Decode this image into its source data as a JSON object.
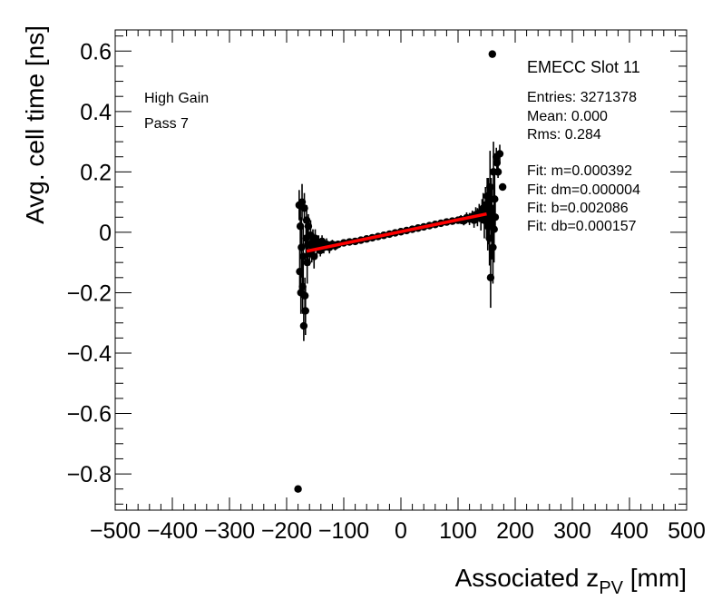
{
  "chart_data": {
    "type": "scatter",
    "title": "",
    "xlabel": "Associated z",
    "xlabel_sub": "PV",
    "xlabel_unit": " [mm]",
    "ylabel": "Avg. cell time [ns]",
    "xlim": [
      -500,
      500
    ],
    "ylim": [
      -0.92,
      0.67
    ],
    "x_ticks": [
      -500,
      -400,
      -300,
      -200,
      -100,
      0,
      100,
      200,
      300,
      400,
      500
    ],
    "x_tick_labels": [
      "−500",
      "−400",
      "−300",
      "−200",
      "−100",
      "0",
      "100",
      "200",
      "300",
      "400",
      "500"
    ],
    "y_ticks": [
      0.6,
      0.4,
      0.2,
      0,
      -0.2,
      -0.4,
      -0.6,
      -0.8
    ],
    "y_tick_labels": [
      "0.6",
      "0.4",
      "0.2",
      "0",
      "−0.2",
      "−0.4",
      "−0.6",
      "−0.8"
    ],
    "grid": false,
    "colors": {
      "markers": "#000000",
      "fit_line": "#ff0000"
    },
    "annotations_left": [
      "High Gain",
      "Pass 7"
    ],
    "stats": {
      "title": "EMECC Slot 11",
      "lines": [
        "Entries: 3271378",
        "Mean: 0.000",
        "Rms: 0.284"
      ],
      "fit_lines": [
        "Fit: m=0.000392",
        "Fit: dm=0.000004",
        "Fit: b=0.002086",
        "Fit: db=0.000157"
      ]
    },
    "fit": {
      "m": 0.000392,
      "b": 0.002086,
      "x_range": [
        -165,
        150
      ]
    },
    "series": [
      {
        "type": "scatter_with_errors",
        "points": [
          [
            -180,
            -0.85,
            0.0
          ],
          [
            -178,
            0.09,
            0.05
          ],
          [
            -177,
            -0.13,
            0.08
          ],
          [
            -176,
            0.02,
            0.06
          ],
          [
            -175,
            -0.2,
            0.07
          ],
          [
            -174,
            -0.05,
            0.1
          ],
          [
            -173,
            0.1,
            0.06
          ],
          [
            -172,
            -0.18,
            0.09
          ],
          [
            -171,
            -0.08,
            0.1
          ],
          [
            -170,
            -0.31,
            0.05
          ],
          [
            -169,
            0.08,
            0.05
          ],
          [
            -168,
            -0.21,
            0.06
          ],
          [
            -167,
            -0.26,
            0.08
          ],
          [
            -166,
            -0.02,
            0.06
          ],
          [
            -165,
            0.04,
            0.05
          ],
          [
            -164,
            -0.1,
            0.07
          ],
          [
            -163,
            -0.04,
            0.05
          ],
          [
            -162,
            0.02,
            0.04
          ],
          [
            -160,
            -0.07,
            0.04
          ],
          [
            -158,
            -0.01,
            0.05
          ],
          [
            -156,
            -0.06,
            0.04
          ],
          [
            -154,
            -0.03,
            0.04
          ],
          [
            -152,
            -0.08,
            0.04
          ],
          [
            -150,
            -0.02,
            0.03
          ],
          [
            -147,
            -0.05,
            0.03
          ],
          [
            -144,
            -0.04,
            0.03
          ],
          [
            -141,
            -0.06,
            0.02
          ],
          [
            -138,
            -0.03,
            0.02
          ],
          [
            -135,
            -0.05,
            0.02
          ],
          [
            -130,
            -0.04,
            0.02
          ],
          [
            -125,
            -0.05,
            0.02
          ],
          [
            -120,
            -0.04,
            0.015
          ],
          [
            -115,
            -0.045,
            0.015
          ],
          [
            -110,
            -0.04,
            0.012
          ],
          [
            -100,
            -0.035,
            0.01
          ],
          [
            -90,
            -0.032,
            0.01
          ],
          [
            -80,
            -0.03,
            0.01
          ],
          [
            -70,
            -0.026,
            0.008
          ],
          [
            -60,
            -0.022,
            0.008
          ],
          [
            -50,
            -0.018,
            0.008
          ],
          [
            -40,
            -0.014,
            0.008
          ],
          [
            -30,
            -0.01,
            0.008
          ],
          [
            -20,
            -0.006,
            0.008
          ],
          [
            -10,
            -0.002,
            0.008
          ],
          [
            0,
            0.002,
            0.008
          ],
          [
            10,
            0.006,
            0.008
          ],
          [
            20,
            0.01,
            0.008
          ],
          [
            30,
            0.014,
            0.008
          ],
          [
            40,
            0.018,
            0.008
          ],
          [
            50,
            0.022,
            0.008
          ],
          [
            60,
            0.026,
            0.01
          ],
          [
            70,
            0.03,
            0.01
          ],
          [
            80,
            0.034,
            0.01
          ],
          [
            90,
            0.037,
            0.012
          ],
          [
            100,
            0.04,
            0.012
          ],
          [
            105,
            0.042,
            0.015
          ],
          [
            110,
            0.038,
            0.015
          ],
          [
            115,
            0.048,
            0.018
          ],
          [
            120,
            0.044,
            0.02
          ],
          [
            125,
            0.052,
            0.02
          ],
          [
            128,
            0.04,
            0.025
          ],
          [
            131,
            0.058,
            0.025
          ],
          [
            134,
            0.05,
            0.03
          ],
          [
            137,
            0.064,
            0.03
          ],
          [
            140,
            0.046,
            0.04
          ],
          [
            142,
            0.07,
            0.04
          ],
          [
            144,
            0.08,
            0.05
          ],
          [
            146,
            0.04,
            0.06
          ],
          [
            148,
            0.09,
            0.06
          ],
          [
            150,
            0.05,
            0.07
          ],
          [
            151,
            0.12,
            0.06
          ],
          [
            152,
            0.02,
            0.08
          ],
          [
            153,
            0.1,
            0.08
          ],
          [
            154,
            0.06,
            0.1
          ],
          [
            155,
            -0.02,
            0.09
          ],
          [
            156,
            0.15,
            0.12
          ],
          [
            157,
            -0.15,
            0.1
          ],
          [
            158,
            0.08,
            0.1
          ],
          [
            159,
            0.03,
            0.12
          ],
          [
            160,
            0.59,
            0.0
          ],
          [
            161,
            -0.05,
            0.12
          ],
          [
            162,
            0.2,
            0.1
          ],
          [
            163,
            0.01,
            0.11
          ],
          [
            164,
            0.11,
            0.1
          ],
          [
            165,
            0.05,
            0.05
          ],
          [
            167,
            0.25,
            0.03
          ],
          [
            168,
            0.23,
            0.03
          ],
          [
            170,
            0.2,
            0.02
          ],
          [
            173,
            0.26,
            0.03
          ],
          [
            178,
            0.15,
            0.0
          ]
        ]
      }
    ]
  }
}
